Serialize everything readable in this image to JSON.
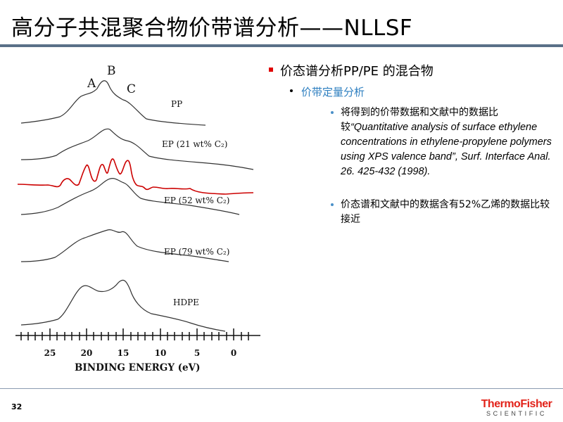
{
  "slide": {
    "title": "高分子共混聚合物价带谱分析——NLLSF",
    "page_number": "32"
  },
  "figure": {
    "peak_labels": [
      "A",
      "B",
      "C"
    ],
    "curve_labels": [
      "PP",
      "EP (21 wt% C₂)",
      "EP (52 wt% C₂)",
      "EP (79 wt% C₂)",
      "HDPE"
    ],
    "x_ticks": [
      "25",
      "20",
      "15",
      "10",
      "5",
      "0"
    ],
    "x_axis_label": "BINDING ENERGY (eV)",
    "highlight_color": "#cc0000"
  },
  "content": {
    "bullet1": "价态谱分析PP/PE 的混合物",
    "sub1": "价带定量分析",
    "item1_prefix": "将得到的价带数据和文献中的数据比较",
    "item1_ref": "“Quantitative analysis of surface ethylene concentrations in ethylene-propylene polymers using XPS valence band”, Surf. Interface Anal. 26. 425-432 (1998).",
    "item2": "价态谱和文献中的数据含有52%乙烯的数据比较接近"
  },
  "logo": {
    "line1": "ThermoFisher",
    "line2": "SCIENTIFIC"
  }
}
